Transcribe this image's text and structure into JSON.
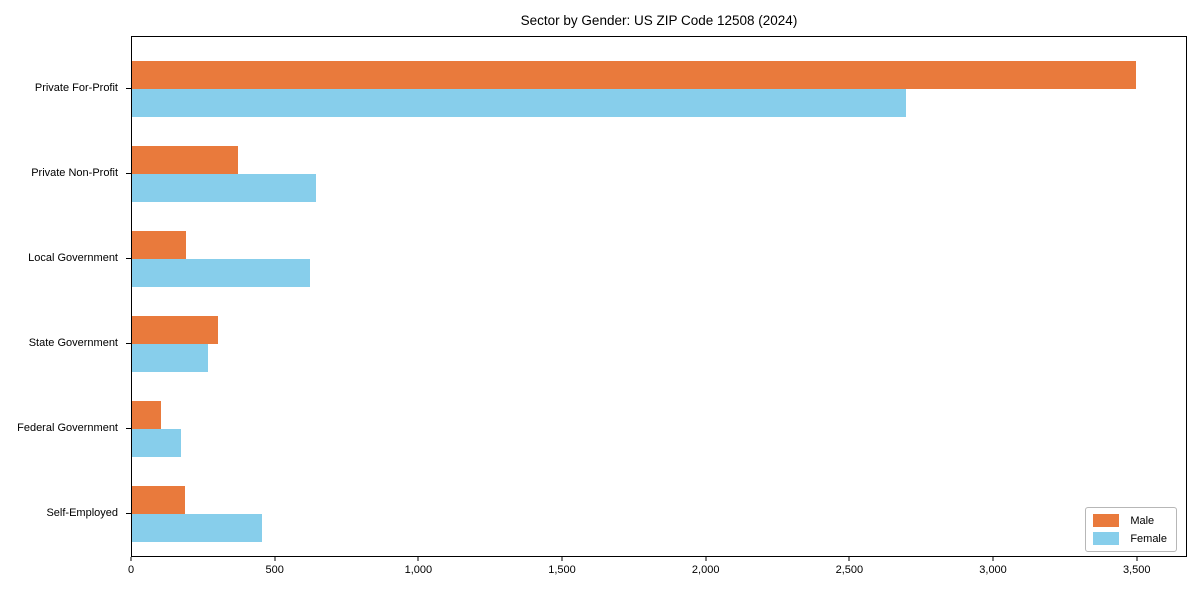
{
  "chart_data": {
    "type": "bar",
    "orientation": "horizontal",
    "title": "Sector by Gender: US ZIP Code 12508 (2024)",
    "xlabel": "",
    "ylabel": "",
    "categories": [
      "Private For-Profit",
      "Private Non-Profit",
      "Local Government",
      "State Government",
      "Federal Government",
      "Self-Employed"
    ],
    "series": [
      {
        "name": "Male",
        "color": "#E97A3C",
        "values": [
          3500,
          370,
          190,
          300,
          100,
          185
        ]
      },
      {
        "name": "Female",
        "color": "#87CEEB",
        "values": [
          2700,
          640,
          620,
          265,
          170,
          455
        ]
      }
    ],
    "xlim": [
      0,
      3675
    ],
    "xticks": [
      0,
      500,
      1000,
      1500,
      2000,
      2500,
      3000,
      3500
    ],
    "xtick_labels": [
      "0",
      "500",
      "1,000",
      "1,500",
      "2,000",
      "2,500",
      "3,000",
      "3,500"
    ],
    "grid": false,
    "legend": {
      "position": "lower right",
      "entries": [
        "Male",
        "Female"
      ]
    }
  },
  "colors": {
    "male": "#E97A3C",
    "female": "#87CEEB",
    "plot_border": "#000000",
    "legend_border": "#b7b7b7",
    "background": "#ffffff"
  }
}
